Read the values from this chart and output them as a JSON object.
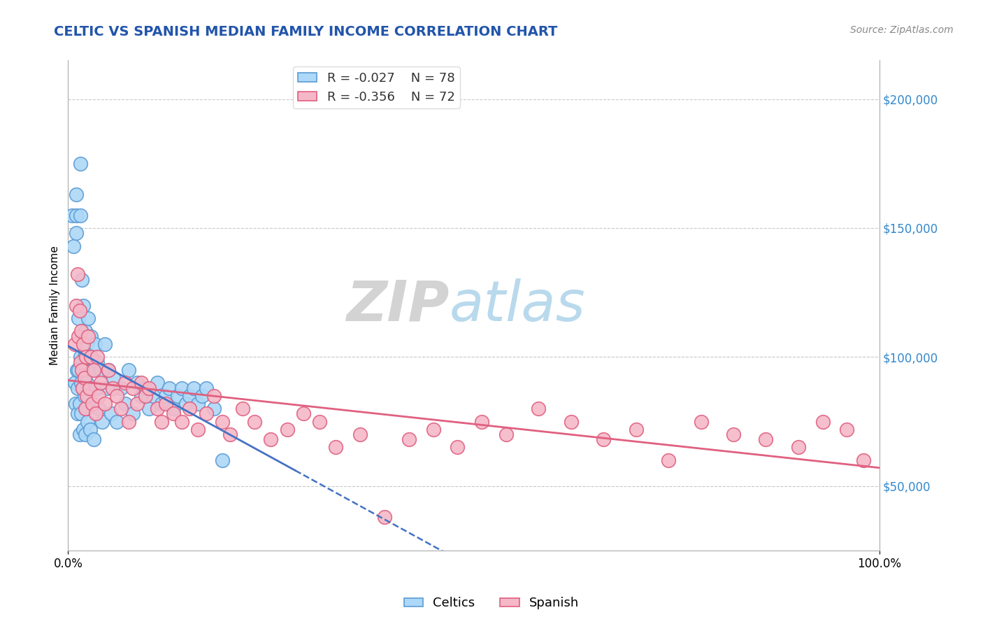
{
  "title": "CELTIC VS SPANISH MEDIAN FAMILY INCOME CORRELATION CHART",
  "source": "Source: ZipAtlas.com",
  "ylabel": "Median Family Income",
  "x_min": 0.0,
  "x_max": 1.0,
  "y_min": 25000,
  "y_max": 215000,
  "y_ticks": [
    50000,
    100000,
    150000,
    200000
  ],
  "y_tick_labels": [
    "$50,000",
    "$100,000",
    "$150,000",
    "$200,000"
  ],
  "x_ticks": [
    0.0,
    1.0
  ],
  "x_tick_labels": [
    "0.0%",
    "100.0%"
  ],
  "celtics_color": "#add8f7",
  "celtics_edge_color": "#5b9bd5",
  "spanish_color": "#f5b8c8",
  "spanish_edge_color": "#e06080",
  "celtics_line_color": "#4472c4",
  "spanish_line_color": "#e06080",
  "celtics_R": -0.027,
  "celtics_N": 78,
  "spanish_R": -0.356,
  "spanish_N": 72,
  "background_color": "#ffffff",
  "grid_color": "#c8c8c8",
  "title_color": "#2255aa",
  "title_fontsize": 14,
  "celtics_x": [
    0.005,
    0.007,
    0.008,
    0.009,
    0.01,
    0.01,
    0.01,
    0.011,
    0.012,
    0.012,
    0.013,
    0.013,
    0.014,
    0.014,
    0.015,
    0.015,
    0.015,
    0.016,
    0.016,
    0.017,
    0.017,
    0.018,
    0.018,
    0.019,
    0.019,
    0.02,
    0.02,
    0.021,
    0.021,
    0.022,
    0.022,
    0.023,
    0.023,
    0.024,
    0.025,
    0.025,
    0.026,
    0.027,
    0.028,
    0.03,
    0.031,
    0.032,
    0.033,
    0.035,
    0.036,
    0.038,
    0.04,
    0.042,
    0.045,
    0.048,
    0.05,
    0.053,
    0.056,
    0.06,
    0.065,
    0.07,
    0.075,
    0.08,
    0.085,
    0.09,
    0.095,
    0.1,
    0.105,
    0.11,
    0.115,
    0.12,
    0.125,
    0.13,
    0.135,
    0.14,
    0.145,
    0.15,
    0.155,
    0.16,
    0.165,
    0.17,
    0.18,
    0.19
  ],
  "celtics_y": [
    155000,
    143000,
    90000,
    82000,
    163000,
    155000,
    148000,
    95000,
    88000,
    78000,
    115000,
    95000,
    82000,
    70000,
    175000,
    155000,
    100000,
    90000,
    78000,
    130000,
    108000,
    95000,
    88000,
    72000,
    120000,
    100000,
    85000,
    70000,
    110000,
    95000,
    80000,
    105000,
    90000,
    75000,
    115000,
    100000,
    88000,
    72000,
    108000,
    95000,
    82000,
    68000,
    105000,
    88000,
    98000,
    80000,
    95000,
    75000,
    105000,
    88000,
    95000,
    78000,
    92000,
    75000,
    88000,
    82000,
    95000,
    78000,
    90000,
    85000,
    88000,
    80000,
    85000,
    90000,
    82000,
    85000,
    88000,
    80000,
    85000,
    88000,
    82000,
    85000,
    88000,
    82000,
    85000,
    88000,
    80000,
    60000
  ],
  "spanish_x": [
    0.008,
    0.01,
    0.012,
    0.013,
    0.014,
    0.015,
    0.016,
    0.017,
    0.018,
    0.019,
    0.02,
    0.021,
    0.022,
    0.023,
    0.025,
    0.026,
    0.028,
    0.03,
    0.032,
    0.034,
    0.036,
    0.038,
    0.04,
    0.045,
    0.05,
    0.055,
    0.06,
    0.065,
    0.07,
    0.075,
    0.08,
    0.085,
    0.09,
    0.095,
    0.1,
    0.11,
    0.115,
    0.12,
    0.13,
    0.14,
    0.15,
    0.16,
    0.17,
    0.18,
    0.19,
    0.2,
    0.215,
    0.23,
    0.25,
    0.27,
    0.29,
    0.31,
    0.33,
    0.36,
    0.39,
    0.42,
    0.45,
    0.48,
    0.51,
    0.54,
    0.58,
    0.62,
    0.66,
    0.7,
    0.74,
    0.78,
    0.82,
    0.86,
    0.9,
    0.93,
    0.96,
    0.98
  ],
  "spanish_y": [
    105000,
    120000,
    132000,
    108000,
    118000,
    98000,
    110000,
    95000,
    88000,
    105000,
    92000,
    80000,
    100000,
    85000,
    108000,
    88000,
    100000,
    82000,
    95000,
    78000,
    100000,
    85000,
    90000,
    82000,
    95000,
    88000,
    85000,
    80000,
    90000,
    75000,
    88000,
    82000,
    90000,
    85000,
    88000,
    80000,
    75000,
    82000,
    78000,
    75000,
    80000,
    72000,
    78000,
    85000,
    75000,
    70000,
    80000,
    75000,
    68000,
    72000,
    78000,
    75000,
    65000,
    70000,
    38000,
    68000,
    72000,
    65000,
    75000,
    70000,
    80000,
    75000,
    68000,
    72000,
    60000,
    75000,
    70000,
    68000,
    65000,
    75000,
    72000,
    60000
  ]
}
